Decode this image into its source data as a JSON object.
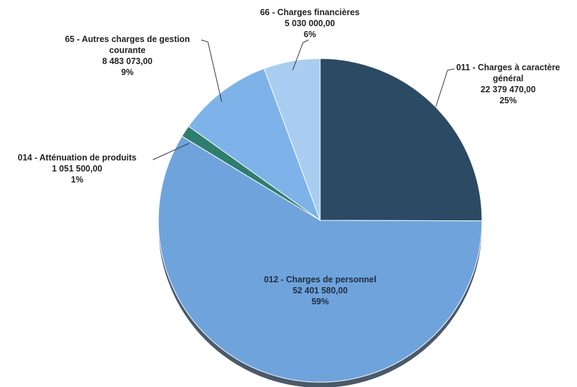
{
  "chart_data": {
    "type": "pie",
    "title": "",
    "slices": [
      {
        "category": "011 - Charges à caractère général",
        "label_lines": [
          "011 - Charges à caractère",
          "général"
        ],
        "value_text": "22 379 470,00",
        "value": 22379470.0,
        "percent": "25%",
        "color": "#2b4a63"
      },
      {
        "category": "012 - Charges de personnel",
        "label_lines": [
          "012 - Charges de personnel"
        ],
        "value_text": "52 401 580,00",
        "value": 52401580.0,
        "percent": "59%",
        "color": "#6fa3dc"
      },
      {
        "category": "014 - Atténuation de produits",
        "label_lines": [
          "014 - Atténuation de produits"
        ],
        "value_text": "1 051 500,00",
        "value": 1051500.0,
        "percent": "1%",
        "color": "#2f7d6e"
      },
      {
        "category": "65 - Autres charges de gestion courante",
        "label_lines": [
          "65 - Autres charges de gestion",
          "courante"
        ],
        "value_text": "8 483 073,00",
        "value": 8483073.0,
        "percent": "9%",
        "color": "#7db3e8"
      },
      {
        "category": "66 - Charges financières",
        "label_lines": [
          "66 - Charges financières"
        ],
        "value_text": "5 030 000,00",
        "value": 5030000.0,
        "percent": "6%",
        "color": "#a9cdf0"
      }
    ]
  }
}
